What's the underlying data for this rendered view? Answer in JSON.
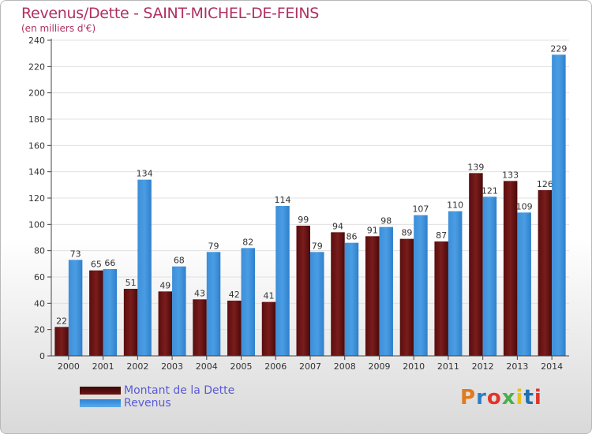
{
  "header": {
    "title": "Revenus/Dette - SAINT-MICHEL-DE-FEINS",
    "subtitle": "(en milliers d'€)"
  },
  "legend": {
    "dette_label": "Montant de la Dette",
    "revenus_label": "Revenus"
  },
  "logo": {
    "letters": [
      "P",
      "r",
      "o",
      "x",
      "i",
      "t",
      "i"
    ],
    "colors": [
      "#e07a1f",
      "#2a7fc9",
      "#e0342b",
      "#4cae4c",
      "#e8c11c",
      "#1f6fb0",
      "#e0342b"
    ]
  },
  "colors": {
    "dette": "#7a1c1c",
    "revenus": "#4a9de3",
    "axis": "#444444",
    "grid": "#e0e0e0"
  },
  "chart_data": {
    "type": "bar",
    "title": "Revenus/Dette - SAINT-MICHEL-DE-FEINS",
    "subtitle": "(en milliers d'€)",
    "xlabel": "",
    "ylabel": "",
    "ylim": [
      0,
      240
    ],
    "yticks": [
      0,
      20,
      40,
      60,
      80,
      100,
      120,
      140,
      160,
      180,
      200,
      220,
      240
    ],
    "grid": true,
    "legend_position": "bottom-left",
    "categories": [
      "2000",
      "2001",
      "2002",
      "2003",
      "2004",
      "2005",
      "2006",
      "2007",
      "2008",
      "2009",
      "2010",
      "2011",
      "2012",
      "2013",
      "2014"
    ],
    "series": [
      {
        "name": "Montant de la Dette",
        "values": [
          22,
          65,
          51,
          49,
          43,
          42,
          41,
          99,
          94,
          91,
          89,
          87,
          139,
          133,
          126
        ]
      },
      {
        "name": "Revenus",
        "values": [
          73,
          66,
          134,
          68,
          79,
          82,
          114,
          79,
          86,
          98,
          107,
          110,
          121,
          109,
          229
        ]
      }
    ]
  }
}
